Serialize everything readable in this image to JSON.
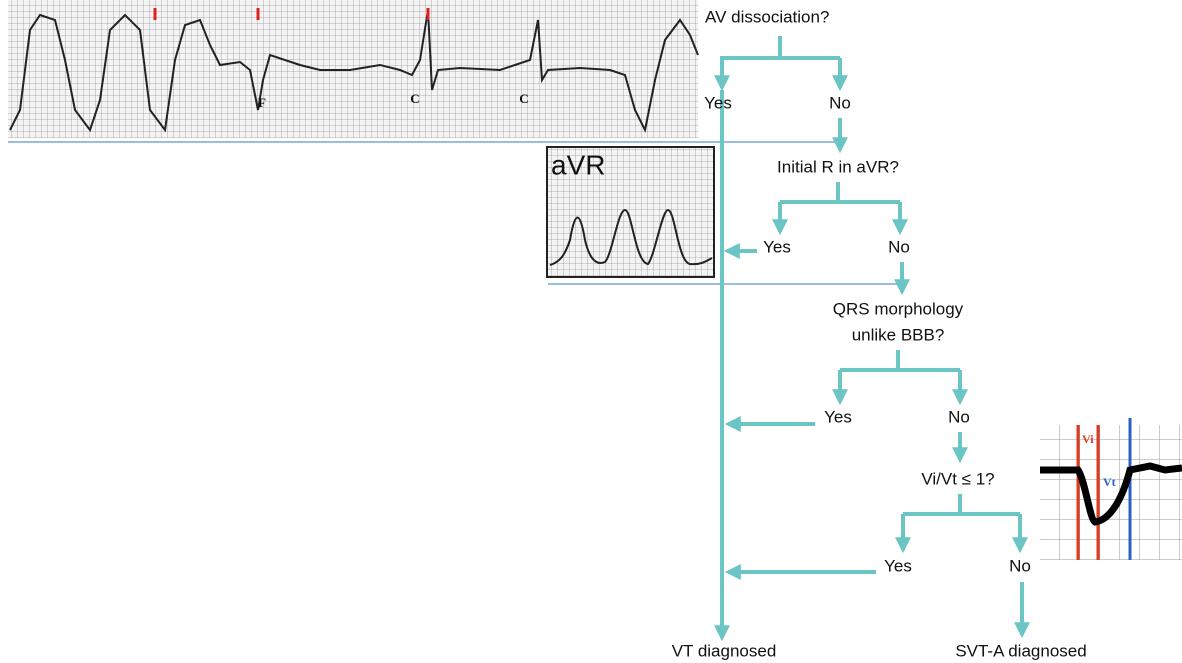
{
  "ecg_strip": {
    "labels": [
      "F",
      "C",
      "C"
    ]
  },
  "avr_image": {
    "label": "aVR"
  },
  "vivt_image": {
    "vi": "Vi",
    "vt": "Vt"
  },
  "questions": [
    {
      "lines": [
        "AV dissociation?"
      ],
      "yes": "Yes",
      "no": "No"
    },
    {
      "lines": [
        "Initial R in aVR?"
      ],
      "yes": "Yes",
      "no": "No"
    },
    {
      "lines": [
        "QRS morphology",
        "unlike BBB?"
      ],
      "yes": "Yes",
      "no": "No"
    },
    {
      "lines": [
        "Vi/Vt ≤ 1?"
      ],
      "yes": "Yes",
      "no": "No"
    }
  ],
  "outcomes": {
    "vt": "VT diagnosed",
    "svt": "SVT-A diagnosed"
  }
}
